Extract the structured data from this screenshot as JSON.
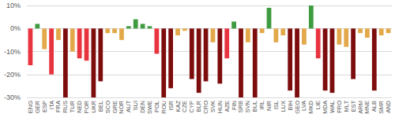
{
  "chart_data": {
    "type": "bar",
    "categories": [
      "ENG",
      "GER",
      "ESP",
      "ITA",
      "FRA",
      "RUS",
      "TUR",
      "NED",
      "POR",
      "UKR",
      "BEL",
      "SCO",
      "GRE",
      "NOR",
      "AUT",
      "SUI",
      "DEN",
      "SWE",
      "POL",
      "ROU",
      "ISR",
      "KAZ",
      "CZE",
      "CYP",
      "BLR",
      "CRO",
      "SVK",
      "HUN",
      "AZE",
      "FIN",
      "SRB",
      "SVN",
      "BUL",
      "IRL",
      "NIR",
      "ISL",
      "LUX",
      "BIH",
      "GEO",
      "LVA",
      "MKD",
      "LIE",
      "MDA",
      "WAL",
      "FRO",
      "MLT",
      "EST",
      "ARM",
      "MNE",
      "ALB",
      "SMR",
      "AND"
    ],
    "values": [
      -16,
      2,
      -9,
      -20,
      -5,
      -30,
      -10,
      -13,
      -14,
      -30,
      -23,
      -2,
      -2,
      -5,
      1,
      4,
      2,
      1,
      -11,
      -30,
      -26,
      -3,
      -1,
      -22,
      -28,
      -23,
      -6,
      -24,
      -13,
      3,
      -30,
      -6,
      -30,
      -2,
      9,
      -6,
      -3,
      -27,
      -30,
      -7,
      10,
      -13,
      -27,
      -28,
      -7,
      -8,
      -22,
      -2,
      -4,
      -27,
      -3,
      -2
    ],
    "colors": [
      "#e8343f",
      "#3f9b3f",
      "#e3a84a",
      "#e8343f",
      "#e3a84a",
      "#7d0c0c",
      "#e3a84a",
      "#e8343f",
      "#e8343f",
      "#7d0c0c",
      "#7d0c0c",
      "#e3a84a",
      "#e3a84a",
      "#e3a84a",
      "#3f9b3f",
      "#3f9b3f",
      "#3f9b3f",
      "#3f9b3f",
      "#e8343f",
      "#7d0c0c",
      "#7d0c0c",
      "#e3a84a",
      "#e3a84a",
      "#7d0c0c",
      "#7d0c0c",
      "#7d0c0c",
      "#e3a84a",
      "#7d0c0c",
      "#e8343f",
      "#3f9b3f",
      "#7d0c0c",
      "#e3a84a",
      "#7d0c0c",
      "#e3a84a",
      "#3f9b3f",
      "#e3a84a",
      "#e3a84a",
      "#7d0c0c",
      "#7d0c0c",
      "#e3a84a",
      "#3f9b3f",
      "#e8343f",
      "#7d0c0c",
      "#7d0c0c",
      "#e3a84a",
      "#e3a84a",
      "#7d0c0c",
      "#e3a84a",
      "#e3a84a",
      "#7d0c0c",
      "#e3a84a",
      "#e3a84a"
    ],
    "ylim": [
      -30,
      10
    ],
    "yticks": [
      {
        "value": -30,
        "label": "-30%"
      },
      {
        "value": -20,
        "label": "-20%"
      },
      {
        "value": -10,
        "label": "-10%"
      },
      {
        "value": 0,
        "label": "0%"
      },
      {
        "value": 10,
        "label": "10%"
      }
    ],
    "grid": true
  }
}
